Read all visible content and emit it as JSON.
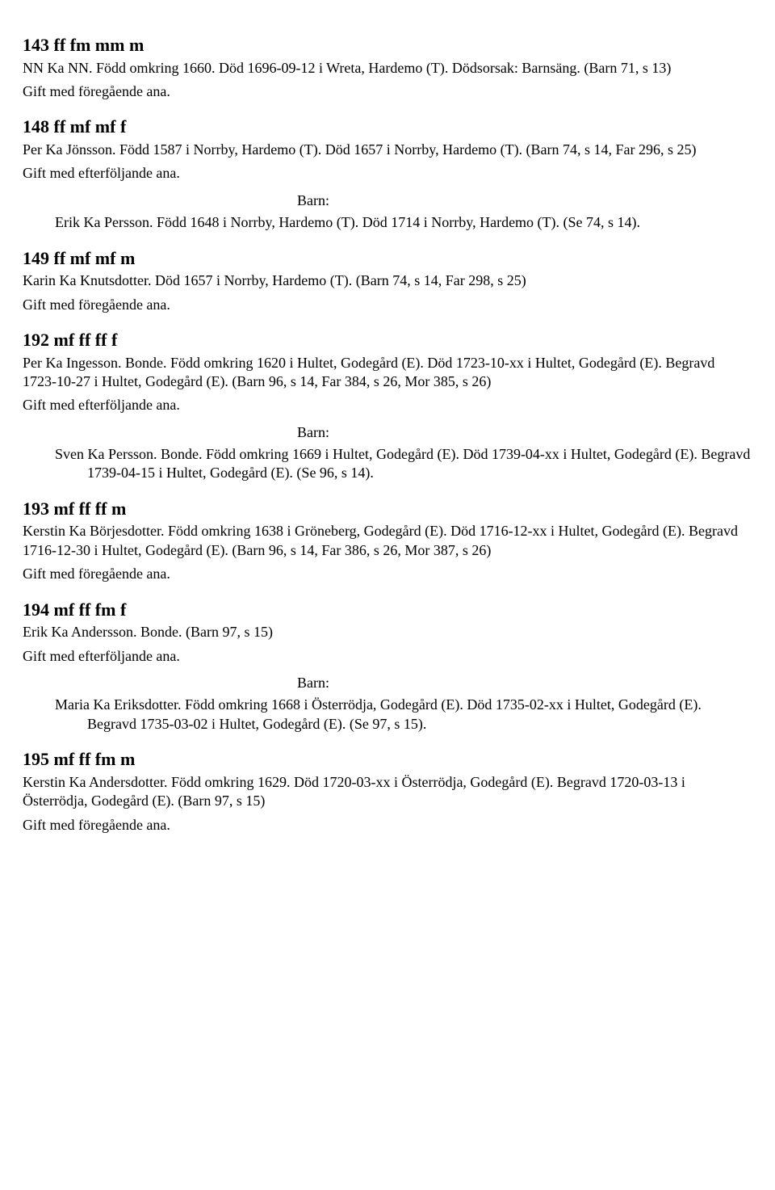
{
  "gift_foregaende": "Gift med föregående ana.",
  "gift_efterfoljande": "Gift med efterföljande ana.",
  "barn_label": "Barn:",
  "e143": {
    "code": "143 ff fm mm m",
    "desc": "NN Ka NN. Född omkring 1660. Död 1696-09-12 i Wreta, Hardemo (T). Dödsorsak: Barnsäng. (Barn 71, s 13)"
  },
  "e148": {
    "code": "148 ff mf mf f",
    "desc": "Per Ka Jönsson. Född 1587 i Norrby, Hardemo (T). Död 1657 i Norrby, Hardemo (T). (Barn 74, s 14, Far 296, s 25)",
    "barn": "Erik Ka Persson. Född 1648 i Norrby, Hardemo (T). Död 1714 i Norrby, Hardemo (T). (Se 74, s 14)."
  },
  "e149": {
    "code": "149 ff mf mf m",
    "desc": "Karin Ka Knutsdotter. Död 1657 i Norrby, Hardemo (T). (Barn 74, s 14, Far 298, s 25)"
  },
  "e192": {
    "code": "192 mf ff ff f",
    "desc": "Per Ka Ingesson. Bonde. Född omkring 1620 i Hultet, Godegård (E). Död 1723-10-xx i Hultet, Godegård (E). Begravd 1723-10-27 i Hultet, Godegård (E). (Barn 96, s 14, Far 384, s 26, Mor 385, s 26)",
    "barn": "Sven Ka Persson. Bonde. Född omkring 1669 i Hultet, Godegård (E). Död 1739-04-xx i Hultet, Godegård (E). Begravd 1739-04-15 i Hultet, Godegård (E). (Se 96, s 14)."
  },
  "e193": {
    "code": "193 mf ff ff m",
    "desc": "Kerstin Ka Börjesdotter. Född omkring 1638 i Gröneberg, Godegård (E). Död 1716-12-xx i Hultet, Godegård (E). Begravd 1716-12-30 i Hultet, Godegård (E). (Barn 96, s 14, Far 386, s 26, Mor 387, s 26)"
  },
  "e194": {
    "code": "194 mf ff fm f",
    "desc": "Erik Ka Andersson. Bonde. (Barn 97, s 15)",
    "barn": "Maria Ka Eriksdotter. Född omkring 1668 i Österrödja, Godegård (E). Död 1735-02-xx i Hultet, Godegård (E). Begravd 1735-03-02 i Hultet, Godegård (E). (Se 97, s 15)."
  },
  "e195": {
    "code": "195 mf ff fm m",
    "desc": "Kerstin Ka Andersdotter. Född omkring 1629. Död 1720-03-xx i Österrödja, Godegård (E). Begravd 1720-03-13 i Österrödja, Godegård (E). (Barn 97, s 15)"
  }
}
